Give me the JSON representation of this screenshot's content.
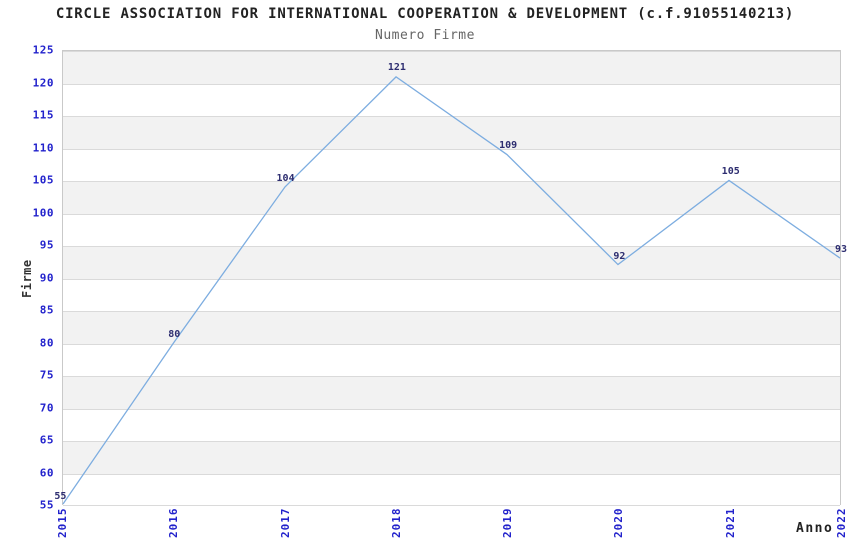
{
  "chart_data": {
    "type": "line",
    "title": "CIRCLE ASSOCIATION FOR INTERNATIONAL COOPERATION & DEVELOPMENT (c.f.91055140213)",
    "subtitle": "Numero Firme",
    "xlabel": "Anno",
    "ylabel": "Firme",
    "categories": [
      "2015",
      "2016",
      "2017",
      "2018",
      "2019",
      "2020",
      "2021",
      "2022"
    ],
    "series": [
      {
        "name": "Numero Firme",
        "values": [
          55,
          80,
          104,
          121,
          109,
          92,
          105,
          93
        ]
      }
    ],
    "data_labels_shown": true,
    "ylim": [
      55,
      125
    ],
    "ytick_step": 5,
    "yticks": [
      "125",
      "120",
      "115",
      "110",
      "105",
      "100",
      "95",
      "90",
      "85",
      "80",
      "75",
      "70",
      "65",
      "60",
      "55"
    ],
    "grid": "horizontal-bands",
    "legend_position": "none",
    "colors": {
      "line": "#7dade0",
      "band_gray": "#f2f2f2",
      "band_white": "#ffffff",
      "gridline": "#dadada",
      "plot_border": "#c9c9c9",
      "tick_label": "#2222cc",
      "value_label": "#2d2d70",
      "title": "#222222",
      "subtitle": "#666666",
      "axis_title": "#333333",
      "background": "#ffffff"
    }
  }
}
